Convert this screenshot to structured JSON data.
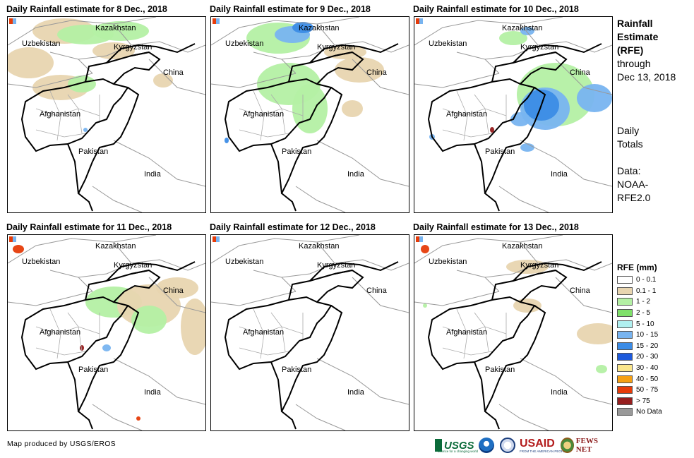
{
  "panels": [
    {
      "title": "Daily Rainfall estimate for 8 Dec., 2018"
    },
    {
      "title": "Daily Rainfall estimate for 9 Dec., 2018"
    },
    {
      "title": "Daily Rainfall estimate for 10 Dec., 2018"
    },
    {
      "title": "Daily Rainfall estimate for 11 Dec., 2018"
    },
    {
      "title": "Daily Rainfall estimate for 12 Dec., 2018"
    },
    {
      "title": "Daily Rainfall estimate for 13 Dec., 2018"
    }
  ],
  "country_labels": [
    "Kazakhstan",
    "Uzbekistan",
    "Kyrgyzstan",
    "China",
    "Afghanistan",
    "Pakistan",
    "India"
  ],
  "side": {
    "heading": [
      "Rainfall",
      "Estimate",
      "(RFE)"
    ],
    "through": [
      "through",
      "Dec 13, 2018"
    ],
    "totals": [
      "Daily",
      "Totals"
    ],
    "source": [
      "Data:",
      "NOAA-",
      "RFE2.0"
    ]
  },
  "legend": {
    "title": "RFE (mm)",
    "items": [
      {
        "label": "0 - 0.1",
        "color": "#ffffff"
      },
      {
        "label": "0.1 - 1",
        "color": "#e8d5b0"
      },
      {
        "label": "1 - 2",
        "color": "#b4f0a4"
      },
      {
        "label": "2 - 5",
        "color": "#7fe06a"
      },
      {
        "label": "5 - 10",
        "color": "#b0f0f0"
      },
      {
        "label": "10 - 15",
        "color": "#78b4f0"
      },
      {
        "label": "15 - 20",
        "color": "#3c8ce6"
      },
      {
        "label": "20 - 30",
        "color": "#1e5adc"
      },
      {
        "label": "30 - 40",
        "color": "#fae68c"
      },
      {
        "label": "40 - 50",
        "color": "#f5a014"
      },
      {
        "label": "50 - 75",
        "color": "#e63c0a"
      },
      {
        "label": "> 75",
        "color": "#961e1e"
      },
      {
        "label": "No Data",
        "color": "#999999"
      }
    ]
  },
  "credit": "Map produced by USGS/EROS",
  "logos": {
    "usgs": "USGS",
    "usgs_tagline": "science for a changing world",
    "usaid": "USAID",
    "usaid_tagline": "FROM THE AMERICAN PEOPLE",
    "fews": "FEWS NET"
  }
}
